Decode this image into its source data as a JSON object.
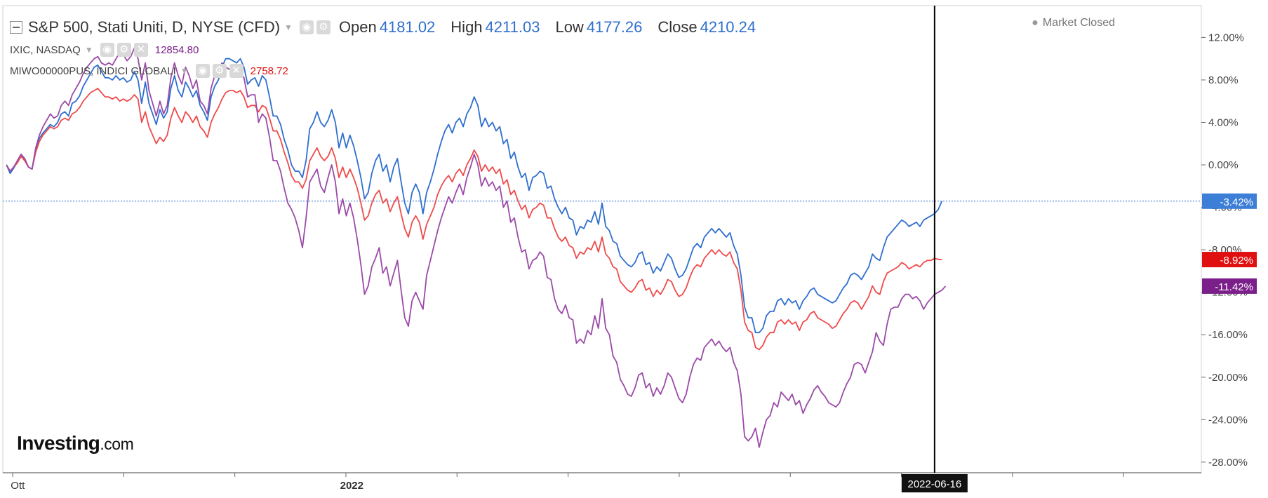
{
  "legend": {
    "main_title": "S&P 500, Stati Uniti, D, NYSE (CFD)",
    "ohlc": [
      {
        "label": "Open",
        "value": "4181.02"
      },
      {
        "label": "High",
        "value": "4211.03"
      },
      {
        "label": "Low",
        "value": "4177.26"
      },
      {
        "label": "Close",
        "value": "4210.24"
      }
    ],
    "overlays": [
      {
        "name": "IXIC, NASDAQ",
        "value": "12854.80",
        "color": "#7b1f8a"
      },
      {
        "name": "MIWO00000PUS, INDICI GLOBALI",
        "value": "2758.72",
        "color": "#e01010"
      }
    ]
  },
  "status": {
    "market": "Market Closed"
  },
  "logo": {
    "brand": "Investing",
    "suffix": ".com"
  },
  "icons": [
    "collapse-icon",
    "eye-icon",
    "gear-icon",
    "close-icon",
    "caret-down-icon"
  ],
  "colors": {
    "sp500": "#2f6fcf",
    "nasdaq": "#9b4aa8",
    "msci": "#ef4a4a",
    "label_sp500": "#3d7fd6",
    "label_msci": "#e01010",
    "label_nasdaq": "#7b1f8a"
  },
  "chart_data": {
    "type": "line",
    "y_unit": "%",
    "ylim": [
      -29,
      15
    ],
    "y_ticks": [
      "12.00%",
      "8.00%",
      "4.00%",
      "0.00%",
      "-4.00%",
      "-8.00%",
      "-12.00%",
      "-16.00%",
      "-20.00%",
      "-24.00%",
      "-28.00%"
    ],
    "y_tick_values": [
      12,
      8,
      4,
      0,
      -4,
      -8,
      -12,
      -16,
      -20,
      -24,
      -28
    ],
    "x_labels": [
      {
        "text": "Ott",
        "pos": 0.02
      },
      {
        "text": "2022",
        "pos": 94.5
      }
    ],
    "x_range": [
      -1,
      327
    ],
    "crosshair": {
      "label": "2022-06-16",
      "pos": 254
    },
    "current_line_value": -3.42,
    "series": [
      {
        "key": "sp500",
        "color_key": "sp500",
        "last_label": "-3.42%",
        "last_value": -3.42,
        "values": [
          0.0,
          -0.8,
          -0.3,
          0.3,
          1.0,
          0.5,
          -0.2,
          -0.4,
          1.5,
          2.5,
          3.0,
          3.4,
          3.8,
          3.6,
          4.0,
          4.8,
          5.0,
          4.6,
          5.8,
          6.0,
          6.5,
          7.4,
          8.0,
          8.6,
          9.2,
          9.4,
          8.8,
          8.2,
          8.2,
          8.0,
          8.4,
          8.0,
          8.2,
          7.8,
          8.0,
          8.8,
          8.0,
          5.8,
          7.8,
          5.8,
          4.8,
          3.8,
          5.2,
          4.4,
          5.0,
          7.2,
          8.4,
          7.0,
          6.4,
          7.8,
          7.2,
          6.4,
          7.0,
          5.6,
          5.0,
          4.2,
          6.4,
          7.4,
          8.0,
          9.2,
          10.0,
          10.0,
          9.8,
          9.6,
          10.0,
          9.2,
          7.6,
          8.0,
          8.2,
          7.4,
          8.4,
          8.0,
          6.4,
          4.6,
          4.6,
          3.8,
          2.4,
          1.4,
          0.0,
          -0.6,
          -0.6,
          -1.2,
          0.4,
          3.4,
          4.0,
          5.0,
          4.0,
          3.6,
          4.2,
          5.2,
          4.0,
          1.6,
          3.0,
          1.6,
          2.8,
          1.8,
          0.4,
          -1.2,
          -3.2,
          -2.6,
          -0.8,
          0.4,
          1.0,
          -0.6,
          0.0,
          -1.6,
          -0.2,
          0.6,
          -1.6,
          -3.6,
          -4.6,
          -2.6,
          -1.8,
          -2.6,
          -4.6,
          -2.6,
          -1.6,
          -0.4,
          1.0,
          2.2,
          3.2,
          3.8,
          3.0,
          4.0,
          4.4,
          3.6,
          4.8,
          5.4,
          6.4,
          5.6,
          3.6,
          4.4,
          3.6,
          4.0,
          3.2,
          3.6,
          2.0,
          2.4,
          0.6,
          1.2,
          -0.2,
          -1.2,
          -0.8,
          -2.4,
          -1.2,
          -1.0,
          -0.6,
          -0.8,
          -2.2,
          -2.0,
          -3.2,
          -4.0,
          -4.6,
          -4.0,
          -5.0,
          -5.2,
          -6.6,
          -5.8,
          -6.0,
          -5.2,
          -5.4,
          -4.4,
          -5.6,
          -3.6,
          -5.8,
          -6.2,
          -7.2,
          -7.4,
          -8.6,
          -9.0,
          -9.4,
          -9.6,
          -9.2,
          -8.4,
          -8.2,
          -9.4,
          -9.2,
          -10.2,
          -9.6,
          -10.0,
          -9.2,
          -8.4,
          -8.8,
          -9.8,
          -10.6,
          -10.4,
          -9.8,
          -8.8,
          -7.8,
          -7.4,
          -7.8,
          -6.8,
          -6.4,
          -6.0,
          -6.4,
          -6.0,
          -6.4,
          -6.8,
          -6.4,
          -7.6,
          -8.4,
          -10.4,
          -13.4,
          -14.4,
          -14.4,
          -15.8,
          -15.8,
          -15.4,
          -14.2,
          -13.8,
          -13.8,
          -12.8,
          -12.6,
          -13.2,
          -12.6,
          -13.0,
          -12.8,
          -13.6,
          -12.8,
          -12.4,
          -11.8,
          -11.6,
          -12.2,
          -12.4,
          -12.6,
          -12.8,
          -13.0,
          -12.8,
          -12.2,
          -11.6,
          -11.2,
          -10.4,
          -10.2,
          -10.4,
          -10.8,
          -10.2,
          -9.6,
          -8.4,
          -8.8,
          -9.0,
          -7.8,
          -6.8,
          -6.4,
          -6.0,
          -5.6,
          -5.2,
          -5.4,
          -5.8,
          -5.6,
          -5.4,
          -5.8,
          -5.2,
          -5.0,
          -4.8,
          -4.6,
          -4.2,
          -3.42
        ]
      },
      {
        "key": "msci",
        "color_key": "msci",
        "last_label": "-8.92%",
        "last_value": -8.92,
        "values": [
          0.0,
          -0.6,
          -0.2,
          0.2,
          0.8,
          0.4,
          -0.2,
          -0.4,
          1.2,
          2.2,
          2.8,
          3.2,
          3.6,
          3.4,
          3.6,
          4.2,
          4.4,
          4.2,
          4.8,
          5.0,
          5.4,
          6.0,
          6.4,
          6.8,
          7.0,
          7.2,
          6.8,
          6.4,
          6.4,
          6.2,
          6.4,
          6.0,
          6.2,
          6.0,
          6.2,
          6.6,
          6.2,
          4.0,
          5.0,
          3.6,
          2.8,
          2.0,
          2.6,
          2.2,
          2.8,
          4.4,
          5.4,
          4.6,
          4.0,
          5.0,
          4.6,
          4.0,
          4.6,
          3.6,
          3.2,
          2.6,
          4.0,
          4.8,
          5.4,
          6.2,
          6.8,
          7.0,
          7.0,
          6.8,
          7.0,
          6.4,
          5.4,
          5.6,
          5.6,
          5.0,
          5.6,
          5.4,
          4.4,
          3.2,
          3.2,
          2.4,
          1.2,
          0.2,
          -1.0,
          -1.6,
          -1.6,
          -2.2,
          -1.4,
          0.4,
          1.0,
          1.6,
          0.8,
          0.4,
          0.8,
          1.6,
          0.6,
          -1.2,
          -0.2,
          -1.2,
          -0.4,
          -1.2,
          -2.2,
          -3.6,
          -5.2,
          -4.8,
          -3.6,
          -2.8,
          -2.4,
          -3.6,
          -3.2,
          -4.4,
          -3.6,
          -3.0,
          -4.6,
          -6.0,
          -6.8,
          -5.4,
          -4.8,
          -5.4,
          -7.0,
          -5.6,
          -4.8,
          -4.0,
          -2.8,
          -2.0,
          -1.4,
          -1.0,
          -1.6,
          -0.8,
          -0.4,
          -1.0,
          0.0,
          0.6,
          1.4,
          0.8,
          -0.6,
          0.0,
          -0.6,
          -0.2,
          -0.8,
          -0.4,
          -1.8,
          -1.4,
          -2.8,
          -2.4,
          -3.4,
          -4.2,
          -3.8,
          -5.0,
          -4.2,
          -4.0,
          -3.6,
          -3.8,
          -5.0,
          -5.0,
          -6.0,
          -6.8,
          -7.2,
          -6.8,
          -7.6,
          -7.8,
          -8.8,
          -8.2,
          -8.4,
          -7.8,
          -8.0,
          -7.2,
          -8.2,
          -6.8,
          -8.4,
          -8.8,
          -9.6,
          -9.8,
          -11.0,
          -11.4,
          -11.8,
          -12.0,
          -11.6,
          -11.0,
          -10.8,
          -11.8,
          -11.6,
          -12.4,
          -11.8,
          -12.2,
          -11.6,
          -10.8,
          -11.0,
          -11.8,
          -12.4,
          -12.2,
          -11.6,
          -10.6,
          -9.8,
          -9.4,
          -9.6,
          -8.8,
          -8.4,
          -8.0,
          -8.4,
          -8.0,
          -8.4,
          -8.6,
          -8.2,
          -9.2,
          -9.8,
          -11.8,
          -14.8,
          -15.6,
          -15.8,
          -17.2,
          -17.4,
          -17.0,
          -16.2,
          -15.8,
          -15.8,
          -14.8,
          -14.6,
          -15.0,
          -14.6,
          -15.0,
          -14.8,
          -15.6,
          -14.8,
          -14.6,
          -14.0,
          -13.8,
          -14.4,
          -14.6,
          -14.8,
          -15.0,
          -15.4,
          -15.2,
          -14.6,
          -14.0,
          -13.6,
          -13.0,
          -12.8,
          -13.0,
          -13.6,
          -13.0,
          -12.4,
          -11.4,
          -12.0,
          -12.2,
          -11.0,
          -10.2,
          -10.0,
          -9.8,
          -9.6,
          -9.2,
          -9.4,
          -9.8,
          -9.6,
          -9.4,
          -9.6,
          -9.2,
          -9.0,
          -9.0,
          -8.8,
          -8.9,
          -8.92
        ]
      },
      {
        "key": "nasdaq",
        "color_key": "nasdaq",
        "last_label": "-11.42%",
        "last_value": -11.42,
        "values": [
          0.0,
          -0.6,
          -0.2,
          0.4,
          1.0,
          0.6,
          -0.2,
          -0.4,
          1.6,
          2.8,
          3.6,
          4.2,
          4.8,
          4.4,
          4.6,
          5.6,
          6.0,
          5.6,
          6.6,
          7.2,
          7.8,
          8.6,
          9.2,
          9.6,
          10.0,
          10.2,
          9.6,
          9.4,
          9.6,
          9.4,
          10.0,
          10.6,
          10.4,
          9.8,
          10.2,
          11.0,
          10.0,
          8.0,
          9.6,
          7.0,
          5.8,
          4.6,
          6.0,
          4.8,
          5.6,
          8.2,
          9.6,
          8.4,
          7.6,
          9.2,
          8.4,
          7.2,
          8.0,
          6.0,
          5.6,
          4.8,
          7.2,
          8.4,
          9.0,
          9.6,
          9.2,
          9.0,
          8.6,
          8.4,
          8.6,
          8.2,
          6.4,
          6.6,
          6.6,
          4.0,
          4.8,
          4.4,
          2.6,
          0.4,
          0.4,
          -0.6,
          -2.2,
          -3.6,
          -4.2,
          -5.0,
          -6.2,
          -7.8,
          -5.0,
          -1.6,
          -1.0,
          -0.4,
          -2.0,
          -2.6,
          -1.2,
          0.0,
          -1.6,
          -4.6,
          -3.2,
          -4.8,
          -3.6,
          -5.0,
          -7.0,
          -9.4,
          -12.2,
          -11.4,
          -9.6,
          -8.8,
          -7.8,
          -10.2,
          -9.6,
          -11.4,
          -10.2,
          -9.0,
          -11.8,
          -14.4,
          -15.2,
          -12.8,
          -12.0,
          -12.8,
          -13.6,
          -10.4,
          -9.0,
          -7.6,
          -6.2,
          -5.0,
          -4.0,
          -3.0,
          -3.6,
          -2.6,
          -1.8,
          -2.8,
          -1.2,
          -0.2,
          1.0,
          0.0,
          -2.0,
          -1.2,
          -2.0,
          -1.6,
          -2.4,
          -2.0,
          -4.0,
          -3.4,
          -5.4,
          -5.0,
          -6.8,
          -8.2,
          -8.0,
          -9.8,
          -9.0,
          -8.8,
          -8.2,
          -8.6,
          -10.6,
          -10.8,
          -12.6,
          -13.6,
          -14.0,
          -13.2,
          -14.4,
          -14.6,
          -16.8,
          -16.4,
          -16.8,
          -15.6,
          -16.0,
          -14.2,
          -15.4,
          -12.6,
          -15.4,
          -16.0,
          -18.0,
          -18.6,
          -20.2,
          -20.8,
          -21.6,
          -21.8,
          -21.0,
          -19.8,
          -19.6,
          -21.0,
          -20.6,
          -21.8,
          -21.0,
          -21.6,
          -20.8,
          -19.6,
          -20.0,
          -21.0,
          -22.0,
          -22.4,
          -21.6,
          -20.0,
          -18.8,
          -18.2,
          -18.4,
          -17.2,
          -16.8,
          -16.4,
          -17.0,
          -16.6,
          -17.2,
          -17.6,
          -17.2,
          -18.6,
          -19.4,
          -21.6,
          -25.6,
          -26.0,
          -25.6,
          -24.8,
          -26.6,
          -25.2,
          -24.0,
          -23.6,
          -22.4,
          -22.8,
          -21.4,
          -21.8,
          -22.2,
          -21.6,
          -22.6,
          -22.2,
          -23.4,
          -22.6,
          -22.0,
          -21.2,
          -20.8,
          -21.4,
          -21.8,
          -22.4,
          -22.6,
          -22.8,
          -22.4,
          -21.4,
          -20.6,
          -20.0,
          -18.8,
          -18.6,
          -18.8,
          -19.6,
          -18.6,
          -17.6,
          -15.8,
          -16.6,
          -17.0,
          -15.0,
          -13.6,
          -13.4,
          -13.4,
          -12.6,
          -12.2,
          -12.2,
          -12.6,
          -12.4,
          -12.8,
          -13.6,
          -13.0,
          -12.6,
          -12.2,
          -12.0,
          -11.8,
          -11.42
        ]
      }
    ]
  }
}
